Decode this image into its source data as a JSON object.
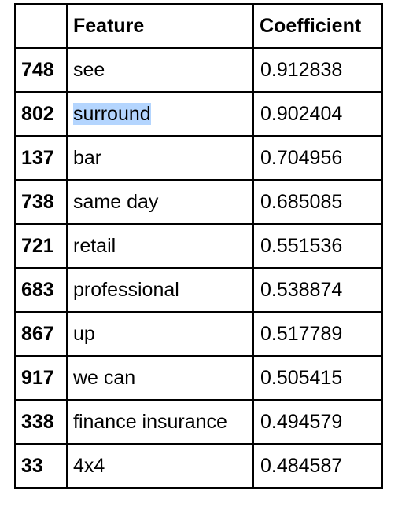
{
  "table": {
    "headers": {
      "index": "",
      "feature": "Feature",
      "coefficient": "Coefficient"
    },
    "rows": [
      {
        "index": "748",
        "feature": "see",
        "coefficient": "0.912838"
      },
      {
        "index": "802",
        "feature": "surround",
        "coefficient": "0.902404",
        "selected": true
      },
      {
        "index": "137",
        "feature": "bar",
        "coefficient": "0.704956"
      },
      {
        "index": "738",
        "feature": "same day",
        "coefficient": "0.685085"
      },
      {
        "index": "721",
        "feature": "retail",
        "coefficient": "0.551536"
      },
      {
        "index": "683",
        "feature": "professional",
        "coefficient": "0.538874"
      },
      {
        "index": "867",
        "feature": "up",
        "coefficient": "0.517789"
      },
      {
        "index": "917",
        "feature": "we can",
        "coefficient": "0.505415"
      },
      {
        "index": "338",
        "feature": "finance insurance",
        "coefficient": "0.494579"
      },
      {
        "index": "33",
        "feature": "4x4",
        "coefficient": "0.484587"
      }
    ]
  },
  "colors": {
    "selection_highlight": "#b4d5fe",
    "border": "#000000",
    "text": "#000000",
    "background": "#ffffff"
  }
}
